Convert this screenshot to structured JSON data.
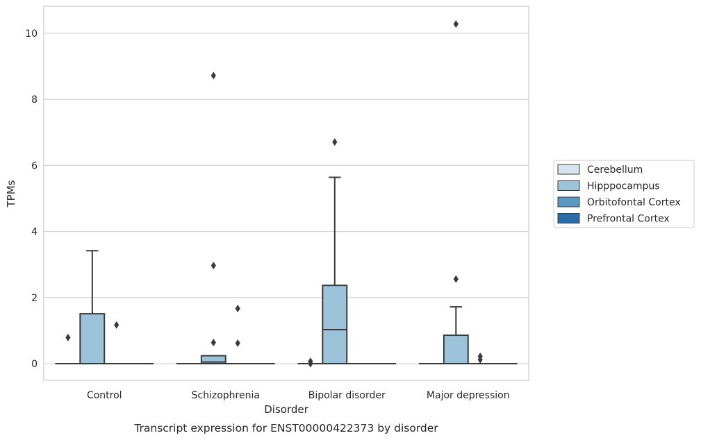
{
  "chart_data": {
    "type": "box",
    "caption": "Transcript expression for ENST00000422373 by disorder",
    "xlabel": "Disorder",
    "ylabel": "TPMs",
    "ylim": [
      -0.5,
      10.8
    ],
    "yticks": [
      0,
      2,
      4,
      6,
      8,
      10
    ],
    "grid": true,
    "legend_position": "right",
    "categories": [
      "Control",
      "Schizophrenia",
      "Bipolar disorder",
      "Major depression"
    ],
    "series": [
      {
        "name": "Cerebellum",
        "color": "#d6e4f0",
        "boxes": [
          {
            "q1": 0,
            "median": 0,
            "q3": 0,
            "whislo": 0,
            "whishi": 0,
            "fliers": [
              0.79
            ]
          },
          {
            "q1": 0,
            "median": 0,
            "q3": 0,
            "whislo": 0,
            "whishi": 0,
            "fliers": []
          },
          {
            "q1": 0,
            "median": 0,
            "q3": 0,
            "whislo": 0,
            "whishi": 0,
            "fliers": [
              0.0,
              0.07
            ]
          },
          {
            "q1": 0,
            "median": 0,
            "q3": 0,
            "whislo": 0,
            "whishi": 0,
            "fliers": []
          }
        ]
      },
      {
        "name": "Hipppocampus",
        "color": "#9dc3db",
        "boxes": [
          {
            "q1": 0,
            "median": 0,
            "q3": 1.51,
            "whislo": 0,
            "whishi": 3.42,
            "fliers": []
          },
          {
            "q1": 0,
            "median": 0.05,
            "q3": 0.24,
            "whislo": 0,
            "whishi": 0.24,
            "fliers": [
              8.72,
              2.97,
              0.64
            ]
          },
          {
            "q1": 0,
            "median": 1.03,
            "q3": 2.37,
            "whislo": 0,
            "whishi": 5.64,
            "fliers": [
              6.71
            ]
          },
          {
            "q1": 0,
            "median": 0,
            "q3": 0.86,
            "whislo": 0,
            "whishi": 1.72,
            "fliers": [
              10.28,
              2.56
            ]
          }
        ]
      },
      {
        "name": "Orbitofontal Cortex",
        "color": "#5a98c3",
        "boxes": [
          {
            "q1": 0,
            "median": 0,
            "q3": 0,
            "whislo": 0,
            "whishi": 0,
            "fliers": [
              1.17
            ]
          },
          {
            "q1": 0,
            "median": 0,
            "q3": 0,
            "whislo": 0,
            "whishi": 0,
            "fliers": [
              1.67,
              0.62
            ]
          },
          {
            "q1": 0,
            "median": 0,
            "q3": 0,
            "whislo": 0,
            "whishi": 0,
            "fliers": []
          },
          {
            "q1": 0,
            "median": 0,
            "q3": 0,
            "whislo": 0,
            "whishi": 0,
            "fliers": [
              0.22,
              0.12
            ]
          }
        ]
      },
      {
        "name": "Prefrontal Cortex",
        "color": "#2b6ba8",
        "boxes": [
          {
            "q1": 0,
            "median": 0,
            "q3": 0,
            "whislo": 0,
            "whishi": 0,
            "fliers": []
          },
          {
            "q1": 0,
            "median": 0,
            "q3": 0,
            "whislo": 0,
            "whishi": 0,
            "fliers": []
          },
          {
            "q1": 0,
            "median": 0,
            "q3": 0,
            "whislo": 0,
            "whishi": 0,
            "fliers": []
          },
          {
            "q1": 0,
            "median": 0,
            "q3": 0,
            "whislo": 0,
            "whishi": 0,
            "fliers": []
          }
        ]
      }
    ]
  }
}
